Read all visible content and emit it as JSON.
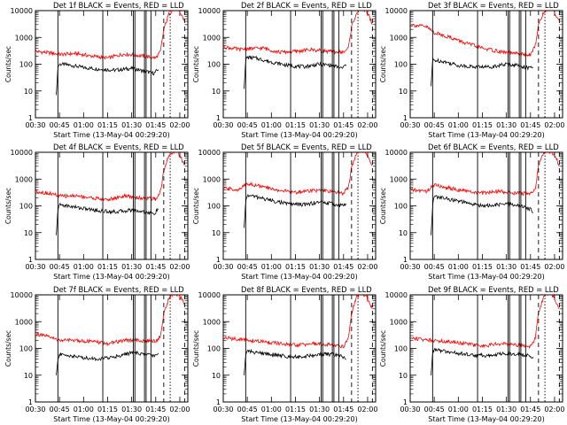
{
  "chart_data": [
    {
      "type": "line",
      "title": "Det 1f BLACK = Events, RED = LLD",
      "xlabel": "Start Time (13-May-04 00:29:20)",
      "ylabel": "Counts/sec",
      "yscale": "log",
      "ylim": [
        1,
        10000
      ],
      "xlim": [
        "00:30",
        "02:05"
      ],
      "xticks": [
        "00:30",
        "00:45",
        "01:00",
        "01:15",
        "01:30",
        "01:45",
        "02:00"
      ],
      "yticks": [
        "1",
        "10",
        "100",
        "1000",
        "10000"
      ],
      "grid": false,
      "series": [
        {
          "name": "Events",
          "color": "#000000",
          "x": [
            "00:43",
            "00:44",
            "00:45",
            "00:50",
            "01:00",
            "01:10",
            "01:20",
            "01:30",
            "01:38",
            "01:44",
            "01:47"
          ],
          "y": [
            7,
            80,
            100,
            95,
            75,
            65,
            60,
            70,
            55,
            45,
            70
          ]
        },
        {
          "name": "LLD",
          "color": "#ff0000",
          "x": [
            "00:30",
            "00:40",
            "00:45",
            "00:55",
            "01:05",
            "01:15",
            "01:25",
            "01:35",
            "01:45",
            "01:48",
            "01:50",
            "01:53",
            "01:56",
            "01:59",
            "02:01",
            "02:03"
          ],
          "y": [
            300,
            260,
            230,
            250,
            200,
            170,
            240,
            210,
            170,
            300,
            2000,
            7000,
            12000,
            10000,
            7000,
            4000
          ]
        }
      ],
      "markers": {
        "solid": [
          "00:44",
          "01:12",
          "01:31",
          "01:32",
          "01:38",
          "01:39",
          "01:42"
        ],
        "dashed": [
          "01:50",
          "01:54",
          "02:03"
        ]
      }
    },
    {
      "type": "line",
      "title": "Det 2f BLACK = Events, RED = LLD",
      "xlabel": "Start Time (13-May-04 00:29:20)",
      "ylabel": "Counts/sec",
      "yscale": "log",
      "ylim": [
        1,
        10000
      ],
      "xlim": [
        "00:30",
        "02:05"
      ],
      "xticks": [
        "00:30",
        "00:45",
        "01:00",
        "01:15",
        "01:30",
        "01:45",
        "02:00"
      ],
      "yticks": [
        "1",
        "10",
        "100",
        "1000",
        "10000"
      ],
      "grid": false,
      "series": [
        {
          "name": "Events",
          "color": "#000000",
          "x": [
            "00:43",
            "00:44",
            "00:45",
            "00:50",
            "01:00",
            "01:10",
            "01:20",
            "01:30",
            "01:38",
            "01:44",
            "01:47"
          ],
          "y": [
            12,
            150,
            180,
            170,
            120,
            90,
            80,
            100,
            90,
            70,
            100
          ]
        },
        {
          "name": "LLD",
          "color": "#ff0000",
          "x": [
            "00:30",
            "00:40",
            "00:45",
            "00:55",
            "01:05",
            "01:15",
            "01:25",
            "01:35",
            "01:45",
            "01:48",
            "01:50",
            "01:53",
            "01:56",
            "01:59",
            "02:01",
            "02:03"
          ],
          "y": [
            450,
            350,
            380,
            400,
            280,
            300,
            350,
            300,
            280,
            400,
            2500,
            8000,
            12000,
            10000,
            6000,
            3000
          ]
        }
      ],
      "markers": {
        "solid": [
          "00:44",
          "01:12",
          "01:31",
          "01:32",
          "01:38",
          "01:39",
          "01:42"
        ],
        "dashed": [
          "01:50",
          "01:54",
          "02:03"
        ]
      }
    },
    {
      "type": "line",
      "title": "Det 3f BLACK = Events, RED = LLD",
      "xlabel": "Start Time (13-May-04 00:29:20)",
      "ylabel": "Counts/sec",
      "yscale": "log",
      "ylim": [
        1,
        10000
      ],
      "xlim": [
        "00:30",
        "02:05"
      ],
      "xticks": [
        "00:30",
        "00:45",
        "01:00",
        "01:15",
        "01:30",
        "01:45",
        "02:00"
      ],
      "yticks": [
        "1",
        "10",
        "100",
        "1000",
        "10000"
      ],
      "grid": false,
      "series": [
        {
          "name": "Events",
          "color": "#000000",
          "x": [
            "00:43",
            "00:44",
            "00:45",
            "00:50",
            "01:00",
            "01:10",
            "01:20",
            "01:30",
            "01:38",
            "01:44",
            "01:47"
          ],
          "y": [
            15,
            150,
            140,
            130,
            90,
            80,
            80,
            100,
            90,
            70,
            80
          ]
        },
        {
          "name": "LLD",
          "color": "#ff0000",
          "x": [
            "00:30",
            "00:40",
            "00:45",
            "00:55",
            "01:05",
            "01:15",
            "01:25",
            "01:35",
            "01:45",
            "01:48",
            "01:50",
            "01:53",
            "01:56",
            "01:59",
            "02:01",
            "02:03"
          ],
          "y": [
            3000,
            2500,
            1500,
            1000,
            600,
            400,
            300,
            250,
            220,
            500,
            3000,
            8000,
            12000,
            10000,
            7000,
            4000
          ]
        }
      ],
      "markers": {
        "solid": [
          "00:44",
          "01:12",
          "01:31",
          "01:32",
          "01:38",
          "01:39",
          "01:42"
        ],
        "dashed": [
          "01:50",
          "01:54",
          "02:03"
        ]
      }
    },
    {
      "type": "line",
      "title": "Det 4f BLACK = Events, RED = LLD",
      "xlabel": "Start Time (13-May-04 00:29:20)",
      "ylabel": "Counts/sec",
      "yscale": "log",
      "ylim": [
        1,
        10000
      ],
      "xlim": [
        "00:30",
        "02:05"
      ],
      "xticks": [
        "00:30",
        "00:45",
        "01:00",
        "01:15",
        "01:30",
        "01:45",
        "02:00"
      ],
      "yticks": [
        "1",
        "10",
        "100",
        "1000",
        "10000"
      ],
      "grid": false,
      "series": [
        {
          "name": "Events",
          "color": "#000000",
          "x": [
            "00:43",
            "00:44",
            "00:45",
            "00:50",
            "01:00",
            "01:10",
            "01:20",
            "01:30",
            "01:38",
            "01:44",
            "01:47"
          ],
          "y": [
            8,
            80,
            110,
            100,
            80,
            65,
            60,
            70,
            60,
            50,
            80
          ]
        },
        {
          "name": "LLD",
          "color": "#ff0000",
          "x": [
            "00:30",
            "00:40",
            "00:45",
            "00:55",
            "01:05",
            "01:15",
            "01:25",
            "01:35",
            "01:45",
            "01:48",
            "01:50",
            "01:53",
            "01:56",
            "01:59",
            "02:01",
            "02:03"
          ],
          "y": [
            350,
            280,
            230,
            240,
            200,
            170,
            230,
            200,
            180,
            350,
            2000,
            7000,
            11000,
            10000,
            6000,
            3000
          ]
        }
      ],
      "markers": {
        "solid": [
          "00:44",
          "01:12",
          "01:31",
          "01:32",
          "01:38",
          "01:39",
          "01:42"
        ],
        "dashed": [
          "01:50",
          "01:54",
          "02:03"
        ]
      }
    },
    {
      "type": "line",
      "title": "Det 5f BLACK = Events, RED = LLD",
      "xlabel": "Start Time (13-May-04 00:29:20)",
      "ylabel": "Counts/sec",
      "yscale": "log",
      "ylim": [
        1,
        10000
      ],
      "xlim": [
        "00:30",
        "02:05"
      ],
      "xticks": [
        "00:30",
        "00:45",
        "01:00",
        "01:15",
        "01:30",
        "01:45",
        "02:00"
      ],
      "yticks": [
        "1",
        "10",
        "100",
        "1000",
        "10000"
      ],
      "grid": false,
      "series": [
        {
          "name": "Events",
          "color": "#000000",
          "x": [
            "00:43",
            "00:44",
            "00:45",
            "00:50",
            "01:00",
            "01:10",
            "01:20",
            "01:30",
            "01:38",
            "01:44",
            "01:47"
          ],
          "y": [
            15,
            150,
            250,
            220,
            160,
            120,
            110,
            140,
            120,
            100,
            130
          ]
        },
        {
          "name": "LLD",
          "color": "#ff0000",
          "x": [
            "00:30",
            "00:40",
            "00:45",
            "00:55",
            "01:05",
            "01:15",
            "01:25",
            "01:35",
            "01:45",
            "01:48",
            "01:50",
            "01:53",
            "01:56",
            "01:59",
            "02:01",
            "02:03"
          ],
          "y": [
            450,
            400,
            700,
            500,
            380,
            320,
            380,
            350,
            300,
            500,
            3000,
            9000,
            12000,
            10000,
            6000,
            3000
          ]
        }
      ],
      "markers": {
        "solid": [
          "00:44",
          "01:12",
          "01:31",
          "01:32",
          "01:38",
          "01:39",
          "01:42"
        ],
        "dashed": [
          "01:50",
          "01:54",
          "02:03"
        ]
      }
    },
    {
      "type": "line",
      "title": "Det 6f BLACK = Events, RED = LLD",
      "xlabel": "Start Time (13-May-04 00:29:20)",
      "ylabel": "Counts/sec",
      "yscale": "log",
      "ylim": [
        1,
        10000
      ],
      "xlim": [
        "00:30",
        "02:05"
      ],
      "xticks": [
        "00:30",
        "00:45",
        "01:00",
        "01:15",
        "01:30",
        "01:45",
        "02:00"
      ],
      "yticks": [
        "1",
        "10",
        "100",
        "1000",
        "10000"
      ],
      "grid": false,
      "series": [
        {
          "name": "Events",
          "color": "#000000",
          "x": [
            "00:43",
            "00:44",
            "00:45",
            "00:50",
            "01:00",
            "01:10",
            "01:20",
            "01:30",
            "01:38",
            "01:44",
            "01:47"
          ],
          "y": [
            8,
            100,
            220,
            200,
            150,
            110,
            100,
            120,
            100,
            80,
            60
          ]
        },
        {
          "name": "LLD",
          "color": "#ff0000",
          "x": [
            "00:30",
            "00:40",
            "00:45",
            "00:55",
            "01:05",
            "01:15",
            "01:25",
            "01:35",
            "01:45",
            "01:48",
            "01:50",
            "01:53",
            "01:56",
            "01:59",
            "02:01",
            "02:03"
          ],
          "y": [
            400,
            350,
            600,
            450,
            350,
            300,
            350,
            300,
            280,
            450,
            3000,
            9000,
            11000,
            9000,
            6000,
            3000
          ]
        }
      ],
      "markers": {
        "solid": [
          "00:44",
          "01:12",
          "01:31",
          "01:32",
          "01:38",
          "01:39",
          "01:42"
        ],
        "dashed": [
          "01:50",
          "01:54",
          "02:03"
        ]
      }
    },
    {
      "type": "line",
      "title": "Det 7f BLACK = Events, RED = LLD",
      "xlabel": "Start Time (13-May-04 00:29:20)",
      "ylabel": "Counts/sec",
      "yscale": "log",
      "ylim": [
        1,
        10000
      ],
      "xlim": [
        "00:30",
        "02:05"
      ],
      "xticks": [
        "00:30",
        "00:45",
        "01:00",
        "01:15",
        "01:30",
        "01:45",
        "02:00"
      ],
      "yticks": [
        "1",
        "10",
        "100",
        "1000",
        "10000"
      ],
      "grid": false,
      "series": [
        {
          "name": "Events",
          "color": "#000000",
          "x": [
            "00:43",
            "00:44",
            "00:45",
            "00:50",
            "01:00",
            "01:10",
            "01:20",
            "01:30",
            "01:38",
            "01:44",
            "01:47"
          ],
          "y": [
            10,
            40,
            60,
            55,
            45,
            40,
            50,
            70,
            60,
            55,
            60
          ]
        },
        {
          "name": "LLD",
          "color": "#ff0000",
          "x": [
            "00:30",
            "00:40",
            "00:45",
            "00:55",
            "01:05",
            "01:15",
            "01:25",
            "01:35",
            "01:45",
            "01:48",
            "01:50",
            "01:53",
            "01:56",
            "01:59",
            "02:01",
            "02:03"
          ],
          "y": [
            350,
            250,
            200,
            200,
            180,
            150,
            200,
            200,
            180,
            300,
            2000,
            7000,
            12000,
            10000,
            7000,
            4000
          ]
        }
      ],
      "markers": {
        "solid": [
          "00:44",
          "01:12",
          "01:31",
          "01:32",
          "01:38",
          "01:39",
          "01:42"
        ],
        "dashed": [
          "01:50",
          "01:54",
          "02:03"
        ]
      }
    },
    {
      "type": "line",
      "title": "Det 8f BLACK = Events, RED = LLD",
      "xlabel": "Start Time (13-May-04 00:29:20)",
      "ylabel": "Counts/sec",
      "yscale": "log",
      "ylim": [
        1,
        10000
      ],
      "xlim": [
        "00:30",
        "02:05"
      ],
      "xticks": [
        "00:30",
        "00:45",
        "01:00",
        "01:15",
        "01:30",
        "01:45",
        "02:00"
      ],
      "yticks": [
        "1",
        "10",
        "100",
        "1000",
        "10000"
      ],
      "grid": false,
      "series": [
        {
          "name": "Events",
          "color": "#000000",
          "x": [
            "00:43",
            "00:44",
            "00:45",
            "00:50",
            "01:00",
            "01:10",
            "01:20",
            "01:30",
            "01:38",
            "01:44",
            "01:47"
          ],
          "y": [
            10,
            60,
            80,
            70,
            60,
            50,
            50,
            60,
            60,
            50,
            40
          ]
        },
        {
          "name": "LLD",
          "color": "#ff0000",
          "x": [
            "00:30",
            "00:40",
            "00:45",
            "00:55",
            "01:05",
            "01:15",
            "01:25",
            "01:35",
            "01:45",
            "01:48",
            "01:50",
            "01:53",
            "01:56",
            "01:59",
            "02:01",
            "02:03"
          ],
          "y": [
            250,
            220,
            200,
            180,
            150,
            130,
            150,
            140,
            120,
            250,
            2000,
            8000,
            12000,
            9000,
            5000,
            3000
          ]
        }
      ],
      "markers": {
        "solid": [
          "00:44",
          "01:12",
          "01:31",
          "01:32",
          "01:38",
          "01:39",
          "01:42"
        ],
        "dashed": [
          "01:50",
          "01:54",
          "02:03"
        ]
      }
    },
    {
      "type": "line",
      "title": "Det 9f BLACK = Events, RED = LLD",
      "xlabel": "Start Time (13-May-04 00:29:20)",
      "ylabel": "Counts/sec",
      "yscale": "log",
      "ylim": [
        1,
        10000
      ],
      "xlim": [
        "00:30",
        "02:05"
      ],
      "xticks": [
        "00:30",
        "00:45",
        "01:00",
        "01:15",
        "01:30",
        "01:45",
        "02:00"
      ],
      "yticks": [
        "1",
        "10",
        "100",
        "1000",
        "10000"
      ],
      "grid": false,
      "series": [
        {
          "name": "Events",
          "color": "#000000",
          "x": [
            "00:43",
            "00:44",
            "00:45",
            "00:50",
            "01:00",
            "01:10",
            "01:20",
            "01:30",
            "01:38",
            "01:44",
            "01:47"
          ],
          "y": [
            10,
            70,
            90,
            80,
            65,
            55,
            55,
            65,
            60,
            55,
            40
          ]
        },
        {
          "name": "LLD",
          "color": "#ff0000",
          "x": [
            "00:30",
            "00:40",
            "00:45",
            "00:55",
            "01:05",
            "01:15",
            "01:25",
            "01:35",
            "01:45",
            "01:48",
            "01:50",
            "01:53",
            "01:56",
            "01:59",
            "02:01",
            "02:03"
          ],
          "y": [
            250,
            210,
            200,
            180,
            150,
            120,
            150,
            140,
            120,
            250,
            2000,
            8000,
            11000,
            9000,
            5000,
            3000
          ]
        }
      ],
      "markers": {
        "solid": [
          "00:44",
          "01:12",
          "01:31",
          "01:32",
          "01:38",
          "01:39",
          "01:42"
        ],
        "dashed": [
          "01:50",
          "01:54",
          "02:03"
        ]
      }
    }
  ]
}
